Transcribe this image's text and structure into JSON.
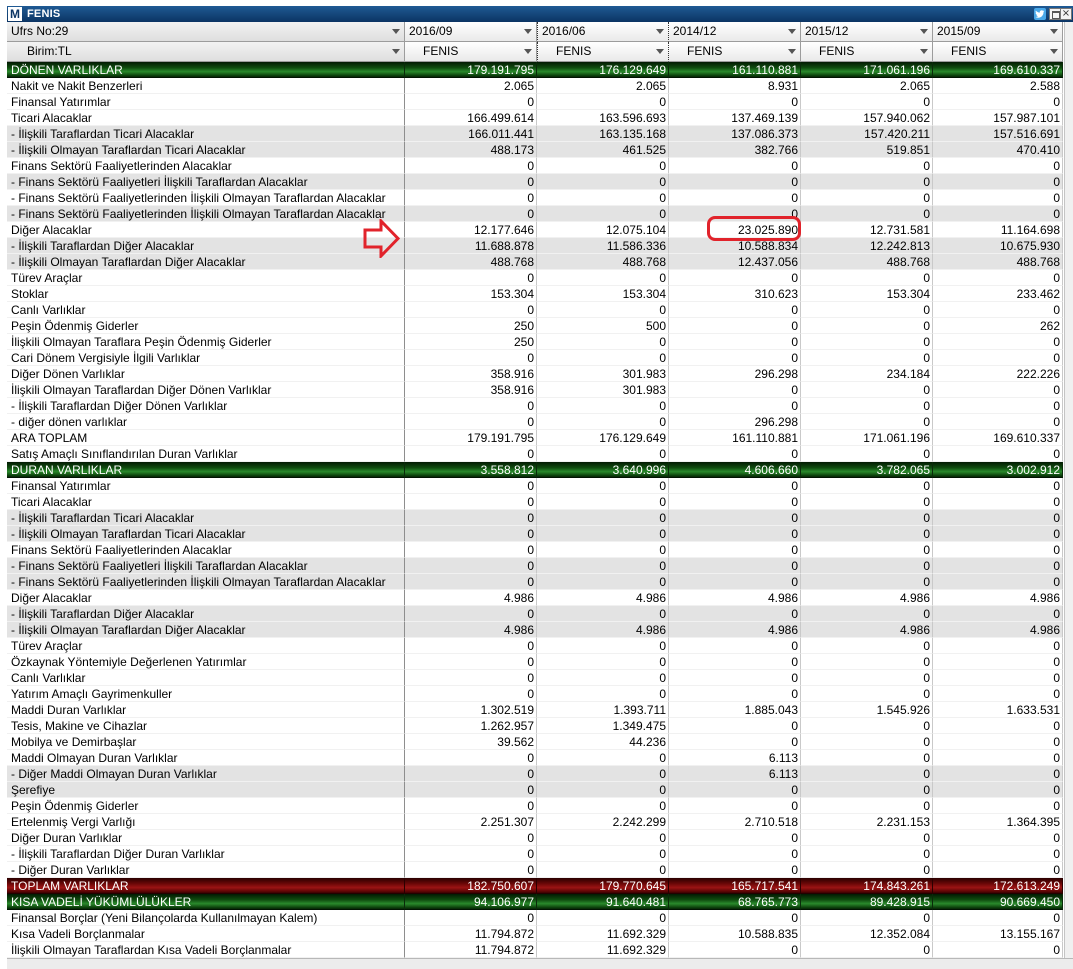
{
  "window": {
    "logo_letter": "M",
    "title": "FENIS"
  },
  "icons": {
    "logo": "m-logo-icon",
    "title_actions": [
      "twitter-icon",
      "window-restore-icon",
      "window-close-icon"
    ],
    "dropdown": "chevron-down-icon",
    "annotation": "arrow-right-icon"
  },
  "colors": {
    "title_bar": "#0b3463",
    "section": "#2a8a2c",
    "total": "#9c1414",
    "shaded": "#e3e3e3",
    "grid": "#c9c9c9",
    "annotation": "#e1232b"
  },
  "header": {
    "report_selector": "Ufrs No:29",
    "unit_selector": "Birim:TL",
    "columns": [
      {
        "period": "2016/09",
        "company": "FENIS"
      },
      {
        "period": "2016/06",
        "company": "FENIS"
      },
      {
        "period": "2014/12",
        "company": "FENIS"
      },
      {
        "period": "2015/12",
        "company": "FENIS"
      },
      {
        "period": "2015/09",
        "company": "FENIS"
      }
    ]
  },
  "rows": [
    {
      "label": "DÖNEN VARLIKLAR",
      "values": [
        "179.191.795",
        "176.129.649",
        "161.110.881",
        "171.061.196",
        "169.610.337"
      ],
      "section": true
    },
    {
      "label": "Nakit ve Nakit Benzerleri",
      "values": [
        "2.065",
        "2.065",
        "8.931",
        "2.065",
        "2.588"
      ]
    },
    {
      "label": "Finansal Yatırımlar",
      "values": [
        "0",
        "0",
        "0",
        "0",
        "0"
      ]
    },
    {
      "label": "Ticari Alacaklar",
      "values": [
        "166.499.614",
        "163.596.693",
        "137.469.139",
        "157.940.062",
        "157.987.101"
      ]
    },
    {
      "label": "- İlişkili Taraflardan Ticari Alacaklar",
      "values": [
        "166.011.441",
        "163.135.168",
        "137.086.373",
        "157.420.211",
        "157.516.691"
      ],
      "shaded": true
    },
    {
      "label": "- İlişkili Olmayan Taraflardan Ticari Alacaklar",
      "values": [
        "488.173",
        "461.525",
        "382.766",
        "519.851",
        "470.410"
      ],
      "shaded": true
    },
    {
      "label": "Finans Sektörü Faaliyetlerinden Alacaklar",
      "values": [
        "0",
        "0",
        "0",
        "0",
        "0"
      ]
    },
    {
      "label": "- Finans Sektörü Faaliyetleri İlişkili Taraflardan Alacaklar",
      "values": [
        "0",
        "0",
        "0",
        "0",
        "0"
      ],
      "shaded": true
    },
    {
      "label": "- Finans Sektörü Faaliyetlerinden İlişkili Olmayan Taraflardan Alacaklar",
      "values": [
        "0",
        "0",
        "0",
        "0",
        "0"
      ]
    },
    {
      "label": "- Finans Sektörü Faaliyetlerinden İlişkili Olmayan Taraflardan Alacaklar",
      "values": [
        "0",
        "0",
        "0",
        "0",
        "0"
      ],
      "shaded": true
    },
    {
      "label": "Diğer Alacaklar",
      "values": [
        "12.177.646",
        "12.075.104",
        "23.025.890",
        "12.731.581",
        "11.164.698"
      ]
    },
    {
      "label": "- İlişkili Taraflardan Diğer Alacaklar",
      "values": [
        "11.688.878",
        "11.586.336",
        "10.588.834",
        "12.242.813",
        "10.675.930"
      ],
      "shaded": true
    },
    {
      "label": "- İlişkili Olmayan Taraflardan Diğer Alacaklar",
      "values": [
        "488.768",
        "488.768",
        "12.437.056",
        "488.768",
        "488.768"
      ],
      "shaded": true
    },
    {
      "label": "Türev Araçlar",
      "values": [
        "0",
        "0",
        "0",
        "0",
        "0"
      ]
    },
    {
      "label": "Stoklar",
      "values": [
        "153.304",
        "153.304",
        "310.623",
        "153.304",
        "233.462"
      ]
    },
    {
      "label": "Canlı Varlıklar",
      "values": [
        "0",
        "0",
        "0",
        "0",
        "0"
      ]
    },
    {
      "label": "Peşin Ödenmiş Giderler",
      "values": [
        "250",
        "500",
        "0",
        "0",
        "262"
      ]
    },
    {
      "label": "İlişkili Olmayan Taraflara Peşin Ödenmiş Giderler",
      "values": [
        "250",
        "0",
        "0",
        "0",
        "0"
      ]
    },
    {
      "label": "Cari Dönem Vergisiyle İlgili Varlıklar",
      "values": [
        "0",
        "0",
        "0",
        "0",
        "0"
      ]
    },
    {
      "label": "Diğer Dönen Varlıklar",
      "values": [
        "358.916",
        "301.983",
        "296.298",
        "234.184",
        "222.226"
      ]
    },
    {
      "label": "İlişkili Olmayan Taraflardan Diğer Dönen Varlıklar",
      "values": [
        "358.916",
        "301.983",
        "0",
        "0",
        "0"
      ]
    },
    {
      "label": "- İlişkili Taraflardan Diğer Dönen Varlıklar",
      "values": [
        "0",
        "0",
        "0",
        "0",
        "0"
      ]
    },
    {
      "label": "- diğer dönen varlıklar",
      "values": [
        "0",
        "0",
        "296.298",
        "0",
        "0"
      ]
    },
    {
      "label": "ARA TOPLAM",
      "values": [
        "179.191.795",
        "176.129.649",
        "161.110.881",
        "171.061.196",
        "169.610.337"
      ]
    },
    {
      "label": "Satış Amaçlı Sınıflandırılan Duran Varlıklar",
      "values": [
        "0",
        "0",
        "0",
        "0",
        "0"
      ]
    },
    {
      "label": "DURAN VARLIKLAR",
      "values": [
        "3.558.812",
        "3.640.996",
        "4.606.660",
        "3.782.065",
        "3.002.912"
      ],
      "section": true
    },
    {
      "label": "Finansal Yatırımlar",
      "values": [
        "0",
        "0",
        "0",
        "0",
        "0"
      ]
    },
    {
      "label": "Ticari Alacaklar",
      "values": [
        "0",
        "0",
        "0",
        "0",
        "0"
      ]
    },
    {
      "label": "- İlişkili Taraflardan Ticari Alacaklar",
      "values": [
        "0",
        "0",
        "0",
        "0",
        "0"
      ],
      "shaded": true
    },
    {
      "label": "- İlişkili Olmayan Taraflardan Ticari Alacaklar",
      "values": [
        "0",
        "0",
        "0",
        "0",
        "0"
      ],
      "shaded": true
    },
    {
      "label": "Finans Sektörü Faaliyetlerinden Alacaklar",
      "values": [
        "0",
        "0",
        "0",
        "0",
        "0"
      ]
    },
    {
      "label": "- Finans Sektörü Faaliyetleri İlişkili Taraflardan Alacaklar",
      "values": [
        "0",
        "0",
        "0",
        "0",
        "0"
      ],
      "shaded": true
    },
    {
      "label": "- Finans Sektörü Faaliyetlerinden İlişkili Olmayan Taraflardan Alacaklar",
      "values": [
        "0",
        "0",
        "0",
        "0",
        "0"
      ],
      "shaded": true
    },
    {
      "label": "Diğer Alacaklar",
      "values": [
        "4.986",
        "4.986",
        "4.986",
        "4.986",
        "4.986"
      ]
    },
    {
      "label": "- İlişkili Taraflardan Diğer Alacaklar",
      "values": [
        "0",
        "0",
        "0",
        "0",
        "0"
      ],
      "shaded": true
    },
    {
      "label": "- İlişkili Olmayan Taraflardan Diğer Alacaklar",
      "values": [
        "4.986",
        "4.986",
        "4.986",
        "4.986",
        "4.986"
      ],
      "shaded": true
    },
    {
      "label": "Türev Araçlar",
      "values": [
        "0",
        "0",
        "0",
        "0",
        "0"
      ]
    },
    {
      "label": "Özkaynak Yöntemiyle Değerlenen Yatırımlar",
      "values": [
        "0",
        "0",
        "0",
        "0",
        "0"
      ]
    },
    {
      "label": "Canlı Varlıklar",
      "values": [
        "0",
        "0",
        "0",
        "0",
        "0"
      ]
    },
    {
      "label": "Yatırım Amaçlı Gayrimenkuller",
      "values": [
        "0",
        "0",
        "0",
        "0",
        "0"
      ]
    },
    {
      "label": "Maddi Duran Varlıklar",
      "values": [
        "1.302.519",
        "1.393.711",
        "1.885.043",
        "1.545.926",
        "1.633.531"
      ]
    },
    {
      "label": "Tesis, Makine ve Cihazlar",
      "values": [
        "1.262.957",
        "1.349.475",
        "0",
        "0",
        "0"
      ]
    },
    {
      "label": "Mobilya ve Demirbaşlar",
      "values": [
        "39.562",
        "44.236",
        "0",
        "0",
        "0"
      ]
    },
    {
      "label": "Maddi Olmayan Duran Varlıklar",
      "values": [
        "0",
        "0",
        "6.113",
        "0",
        "0"
      ]
    },
    {
      "label": "- Diğer Maddi Olmayan Duran Varlıklar",
      "values": [
        "0",
        "0",
        "6.113",
        "0",
        "0"
      ],
      "shaded": true
    },
    {
      "label": "Şerefiye",
      "values": [
        "0",
        "0",
        "0",
        "0",
        "0"
      ],
      "shaded": true
    },
    {
      "label": "Peşin Ödenmiş Giderler",
      "values": [
        "0",
        "0",
        "0",
        "0",
        "0"
      ]
    },
    {
      "label": "Ertelenmiş Vergi Varlığı",
      "values": [
        "2.251.307",
        "2.242.299",
        "2.710.518",
        "2.231.153",
        "1.364.395"
      ]
    },
    {
      "label": "Diğer Duran Varlıklar",
      "values": [
        "0",
        "0",
        "0",
        "0",
        "0"
      ]
    },
    {
      "label": "- İlişkili Taraflardan Diğer Duran Varlıklar",
      "values": [
        "0",
        "0",
        "0",
        "0",
        "0"
      ]
    },
    {
      "label": "- Diğer Duran Varlıklar",
      "values": [
        "0",
        "0",
        "0",
        "0",
        "0"
      ]
    },
    {
      "label": "TOPLAM VARLIKLAR",
      "values": [
        "182.750.607",
        "179.770.645",
        "165.717.541",
        "174.843.261",
        "172.613.249"
      ],
      "total": true
    },
    {
      "label": "KISA VADELİ YÜKÜMLÜLÜKLER",
      "values": [
        "94.106.977",
        "91.640.481",
        "68.765.773",
        "89.428.915",
        "90.669.450"
      ],
      "section": true
    },
    {
      "label": "Finansal Borçlar (Yeni Bilançolarda Kullanılmayan Kalem)",
      "values": [
        "0",
        "0",
        "0",
        "0",
        "0"
      ]
    },
    {
      "label": "Kısa Vadeli Borçlanmalar",
      "values": [
        "11.794.872",
        "11.692.329",
        "10.588.835",
        "12.352.084",
        "13.155.167"
      ]
    },
    {
      "label": "İlişkili Olmayan Taraflardan Kısa Vadeli Borçlanmalar",
      "values": [
        "11.794.872",
        "11.692.329",
        "0",
        "0",
        "0"
      ]
    }
  ]
}
